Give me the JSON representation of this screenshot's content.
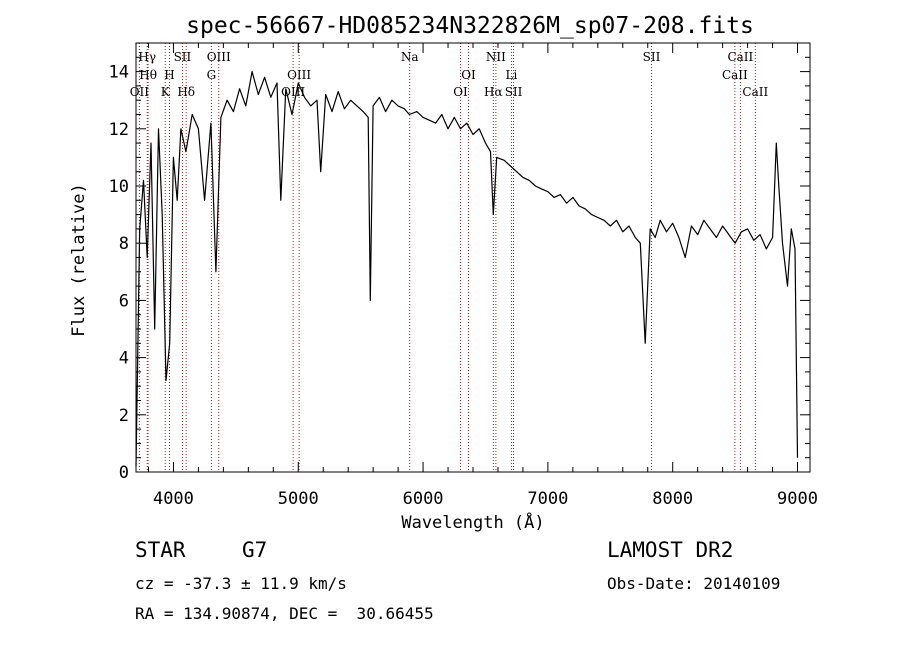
{
  "chart_data": {
    "type": "line",
    "title": "spec-56667-HD085234N322826M_sp07-208.fits",
    "xlabel": "Wavelength (Å)",
    "ylabel": "Flux (relative)",
    "xlim": [
      3700,
      9100
    ],
    "ylim": [
      0,
      15
    ],
    "xticks": [
      4000,
      5000,
      6000,
      7000,
      8000,
      9000
    ],
    "yticks": [
      0,
      2,
      4,
      6,
      8,
      10,
      12,
      14
    ],
    "grid": false,
    "line_color": "#000000",
    "marker_color": "#b22222",
    "spectrum": {
      "x": [
        3700,
        3730,
        3760,
        3790,
        3820,
        3850,
        3880,
        3910,
        3940,
        3970,
        4000,
        4030,
        4060,
        4100,
        4150,
        4200,
        4250,
        4300,
        4340,
        4380,
        4430,
        4480,
        4530,
        4580,
        4630,
        4680,
        4730,
        4780,
        4830,
        4860,
        4900,
        4950,
        5000,
        5050,
        5100,
        5150,
        5180,
        5220,
        5270,
        5320,
        5370,
        5420,
        5470,
        5520,
        5560,
        5577,
        5600,
        5650,
        5700,
        5750,
        5800,
        5850,
        5890,
        5950,
        6000,
        6050,
        6100,
        6150,
        6200,
        6250,
        6300,
        6350,
        6400,
        6450,
        6500,
        6540,
        6563,
        6590,
        6650,
        6700,
        6750,
        6800,
        6850,
        6900,
        6950,
        7000,
        7050,
        7100,
        7150,
        7200,
        7250,
        7300,
        7350,
        7400,
        7450,
        7500,
        7550,
        7600,
        7650,
        7700,
        7740,
        7780,
        7820,
        7860,
        7900,
        7950,
        8000,
        8050,
        8100,
        8150,
        8200,
        8250,
        8300,
        8350,
        8400,
        8450,
        8500,
        8550,
        8600,
        8650,
        8700,
        8750,
        8800,
        8830,
        8850,
        8880,
        8920,
        8950,
        8980,
        9000
      ],
      "y": [
        0.2,
        8.5,
        10.2,
        7.5,
        11.5,
        5.0,
        12.0,
        9.0,
        3.2,
        4.5,
        11.0,
        9.5,
        12.0,
        11.2,
        12.5,
        12.0,
        9.5,
        12.2,
        7.0,
        12.4,
        13.0,
        12.6,
        13.4,
        12.8,
        14.0,
        13.2,
        13.8,
        13.1,
        13.6,
        9.5,
        13.4,
        12.5,
        13.6,
        13.1,
        12.8,
        13.0,
        10.5,
        13.2,
        12.6,
        13.3,
        12.7,
        13.0,
        12.8,
        12.6,
        12.4,
        6.0,
        12.8,
        13.1,
        12.6,
        13.0,
        12.8,
        12.7,
        12.5,
        12.6,
        12.4,
        12.3,
        12.2,
        12.5,
        12.0,
        12.4,
        12.0,
        12.2,
        11.8,
        12.0,
        11.5,
        11.2,
        9.0,
        11.0,
        10.9,
        10.7,
        10.5,
        10.3,
        10.2,
        10.0,
        9.9,
        9.8,
        9.6,
        9.7,
        9.4,
        9.6,
        9.3,
        9.2,
        9.0,
        8.9,
        8.8,
        8.6,
        8.8,
        8.4,
        8.6,
        8.2,
        8.0,
        4.5,
        8.5,
        8.2,
        8.8,
        8.4,
        8.7,
        8.2,
        7.5,
        8.6,
        8.3,
        8.8,
        8.5,
        8.2,
        8.6,
        8.3,
        8.0,
        8.4,
        8.5,
        8.1,
        8.3,
        7.8,
        8.2,
        11.5,
        10.0,
        8.0,
        6.5,
        8.5,
        7.8,
        0.5
      ]
    },
    "line_markers": [
      {
        "label": "Hγ",
        "wavelength": 3790,
        "row": 0
      },
      {
        "label": "Hθ",
        "wavelength": 3797,
        "row": 1
      },
      {
        "label": "OII",
        "wavelength": 3727,
        "row": 2
      },
      {
        "label": "SII",
        "wavelength": 4072,
        "row": 0
      },
      {
        "label": "H",
        "wavelength": 3968,
        "row": 1
      },
      {
        "label": "K",
        "wavelength": 3934,
        "row": 2
      },
      {
        "label": "Hδ",
        "wavelength": 4102,
        "row": 2
      },
      {
        "label": "OIII",
        "wavelength": 4363,
        "row": 0
      },
      {
        "label": "G",
        "wavelength": 4304,
        "row": 1
      },
      {
        "label": "OIII",
        "wavelength": 5007,
        "row": 1
      },
      {
        "label": "OIII",
        "wavelength": 4959,
        "row": 2
      },
      {
        "label": "Na",
        "wavelength": 5893,
        "row": 0
      },
      {
        "label": "NII",
        "wavelength": 6583,
        "row": 0
      },
      {
        "label": "OI",
        "wavelength": 6364,
        "row": 1
      },
      {
        "label": "Li",
        "wavelength": 6708,
        "row": 1
      },
      {
        "label": "OI",
        "wavelength": 6300,
        "row": 2
      },
      {
        "label": "Hα",
        "wavelength": 6563,
        "row": 2
      },
      {
        "label": "SII",
        "wavelength": 6725,
        "row": 2
      },
      {
        "label": "SII",
        "wavelength": 7830,
        "row": 0
      },
      {
        "label": "CaII",
        "wavelength": 8542,
        "row": 0
      },
      {
        "label": "CaII",
        "wavelength": 8498,
        "row": 1
      },
      {
        "label": "CaII",
        "wavelength": 8662,
        "row": 2
      }
    ]
  },
  "info": {
    "object_class": "STAR",
    "subclass": "G7",
    "survey": "LAMOST DR2",
    "cz": "cz = -37.3 ± 11.9 km/s",
    "obs_date": "Obs-Date: 20140109",
    "coords": "RA = 134.90874, DEC =  30.66455"
  }
}
